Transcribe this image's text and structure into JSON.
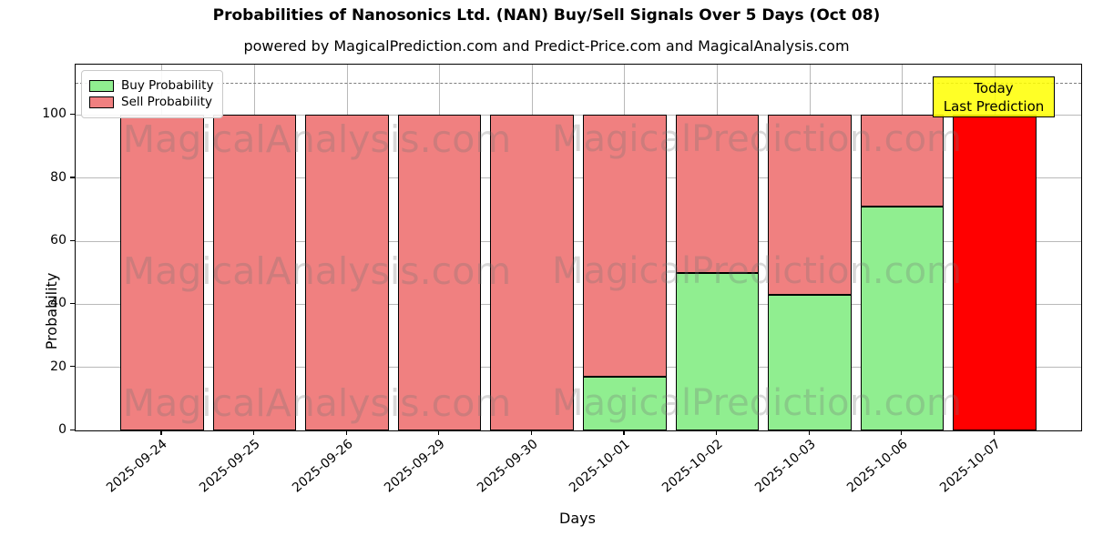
{
  "title": "Probabilities of Nanosonics Ltd. (NAN) Buy/Sell Signals Over 5 Days (Oct 08)",
  "subtitle": "powered by MagicalPrediction.com and Predict-Price.com and MagicalAnalysis.com",
  "axes": {
    "x_label": "Days",
    "y_label": "Probability",
    "y_ticks": [
      0,
      20,
      40,
      60,
      80,
      100
    ]
  },
  "legend": {
    "items": [
      {
        "label": "Buy Probability",
        "color": "#90EE90"
      },
      {
        "label": "Sell Probability",
        "color": "#F08080"
      }
    ]
  },
  "annotation_box": {
    "lines": [
      "Today",
      "Last Prediction"
    ],
    "bg_color": "#FFFF00"
  },
  "watermarks": {
    "left": "MagicalAnalysis.com",
    "right": "MagicalPrediction.com"
  },
  "colors": {
    "buy": "#90EE90",
    "sell": "#F08080",
    "today_bar": "#FF0000",
    "bar_edge": "#000000",
    "grid": "#B9B9B9",
    "dashed_line": "#7F7F7F"
  },
  "chart_data": {
    "type": "bar",
    "stacked": true,
    "title": "Probabilities of Nanosonics Ltd. (NAN) Buy/Sell Signals Over 5 Days (Oct 08)",
    "xlabel": "Days",
    "ylabel": "Probability",
    "categories": [
      "2025-09-24",
      "2025-09-25",
      "2025-09-26",
      "2025-09-29",
      "2025-09-30",
      "2025-10-01",
      "2025-10-02",
      "2025-10-03",
      "2025-10-06",
      "2025-10-07"
    ],
    "series": [
      {
        "name": "Buy Probability",
        "color": "#90EE90",
        "values": [
          0,
          0,
          0,
          0,
          0,
          17,
          50,
          43,
          71,
          0
        ]
      },
      {
        "name": "Sell Probability",
        "color": "#F08080",
        "values": [
          100,
          100,
          100,
          100,
          100,
          83,
          50,
          57,
          29,
          100
        ]
      }
    ],
    "today_bar": {
      "category": "2025-10-07",
      "color": "#FF0000",
      "label": "Today Last Prediction"
    },
    "ylim": [
      0,
      116
    ],
    "dashed_line_y": 110,
    "grid": true,
    "legend_position": "upper left"
  }
}
